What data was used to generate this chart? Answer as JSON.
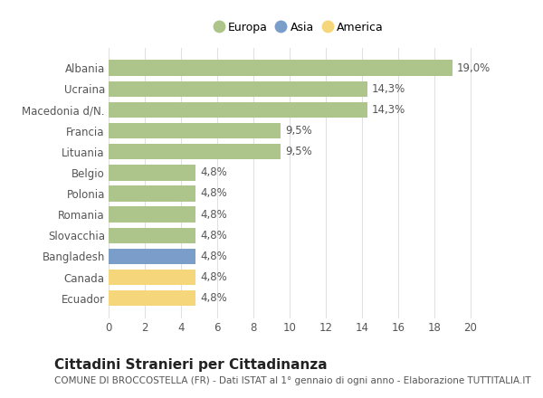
{
  "categories": [
    "Albania",
    "Ucraina",
    "Macedonia d/N.",
    "Francia",
    "Lituania",
    "Belgio",
    "Polonia",
    "Romania",
    "Slovacchia",
    "Bangladesh",
    "Canada",
    "Ecuador"
  ],
  "values": [
    19.0,
    14.3,
    14.3,
    9.5,
    9.5,
    4.8,
    4.8,
    4.8,
    4.8,
    4.8,
    4.8,
    4.8
  ],
  "labels": [
    "19,0%",
    "14,3%",
    "14,3%",
    "9,5%",
    "9,5%",
    "4,8%",
    "4,8%",
    "4,8%",
    "4,8%",
    "4,8%",
    "4,8%",
    "4,8%"
  ],
  "continent": [
    "Europa",
    "Europa",
    "Europa",
    "Europa",
    "Europa",
    "Europa",
    "Europa",
    "Europa",
    "Europa",
    "Asia",
    "America",
    "America"
  ],
  "colors": {
    "Europa": "#adc48a",
    "Asia": "#7b9dc9",
    "America": "#f5d67a"
  },
  "legend_items": [
    {
      "label": "Europa",
      "color": "#adc48a"
    },
    {
      "label": "Asia",
      "color": "#7b9dc9"
    },
    {
      "label": "America",
      "color": "#f5d67a"
    }
  ],
  "xlim": [
    0,
    21
  ],
  "xticks": [
    0,
    2,
    4,
    6,
    8,
    10,
    12,
    14,
    16,
    18,
    20
  ],
  "title": "Cittadini Stranieri per Cittadinanza",
  "subtitle": "COMUNE DI BROCCOSTELLA (FR) - Dati ISTAT al 1° gennaio di ogni anno - Elaborazione TUTTITALIA.IT",
  "background_color": "#ffffff",
  "grid_color": "#e0e0e0",
  "bar_height": 0.75,
  "label_fontsize": 8.5,
  "tick_fontsize": 8.5,
  "title_fontsize": 11,
  "subtitle_fontsize": 7.5
}
